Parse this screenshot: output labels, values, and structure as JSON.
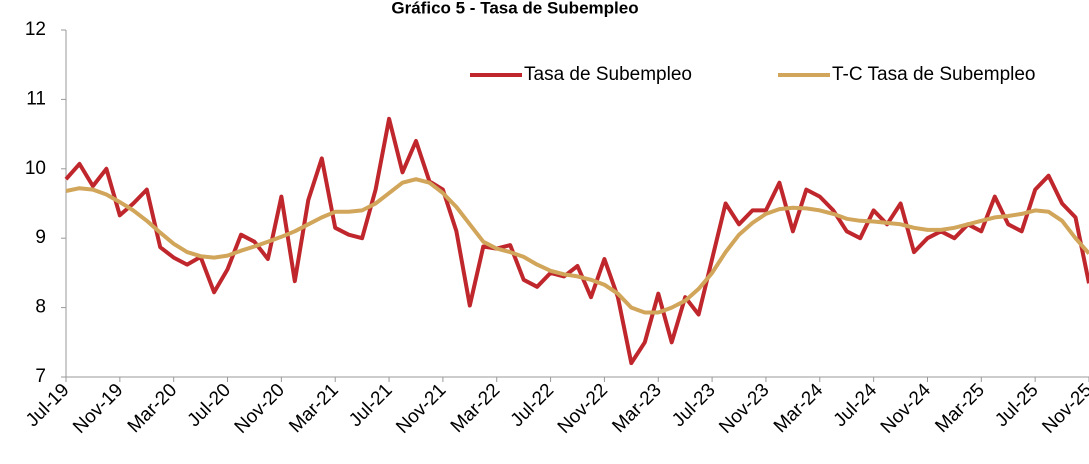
{
  "chart_data": {
    "type": "line",
    "title": "Gráfico 5 - Tasa de Subempleo",
    "categories": [
      "Jul-19",
      null,
      null,
      null,
      "Nov-19",
      null,
      null,
      null,
      "Mar-20",
      null,
      null,
      null,
      "Jul-20",
      null,
      null,
      null,
      "Nov-20",
      null,
      null,
      null,
      "Mar-21",
      null,
      null,
      null,
      "Jul-21",
      null,
      null,
      null,
      "Nov-21",
      null,
      null,
      null,
      "Mar-22",
      null,
      null,
      null,
      "Jul-22",
      null,
      null,
      null,
      "Nov-22",
      null,
      null,
      null,
      "Mar-23",
      null,
      null,
      null,
      "Jul-23",
      null,
      null,
      null,
      "Nov-23",
      null,
      null,
      null,
      "Mar-24",
      null,
      null,
      null,
      "Jul-24",
      null,
      null,
      null,
      "Nov-24",
      null,
      null,
      null,
      "Mar-25",
      null,
      null,
      null,
      "Jul-25",
      null,
      null,
      null,
      "Nov-25"
    ],
    "series": [
      {
        "name": "Tasa de Subempleo",
        "color": "#c0272d",
        "values": [
          9.85,
          10.07,
          9.75,
          10.0,
          9.33,
          9.5,
          9.7,
          8.87,
          8.72,
          8.62,
          8.73,
          8.22,
          8.55,
          9.05,
          8.95,
          8.7,
          9.6,
          8.38,
          9.55,
          10.15,
          9.15,
          9.05,
          9.0,
          9.7,
          10.72,
          9.95,
          10.4,
          9.82,
          9.7,
          9.1,
          8.03,
          8.88,
          8.85,
          8.9,
          8.4,
          8.3,
          8.5,
          8.45,
          8.6,
          8.15,
          8.7,
          8.15,
          7.2,
          7.5,
          8.2,
          7.5,
          8.15,
          7.9,
          8.7,
          9.5,
          9.2,
          9.4,
          9.4,
          9.8,
          9.1,
          9.7,
          9.6,
          9.4,
          9.1,
          9.0,
          9.4,
          9.2,
          9.5,
          8.8,
          9.0,
          9.1,
          9.0,
          9.2,
          9.1,
          9.6,
          9.2,
          9.1,
          9.7,
          9.9,
          9.5,
          9.3,
          8.35
        ]
      },
      {
        "name": "T-C Tasa de Subempleo",
        "color": "#d1a55a",
        "values": [
          9.68,
          9.72,
          9.7,
          9.63,
          9.52,
          9.4,
          9.25,
          9.08,
          8.92,
          8.8,
          8.74,
          8.72,
          8.75,
          8.82,
          8.88,
          8.95,
          9.02,
          9.1,
          9.2,
          9.3,
          9.38,
          9.38,
          9.4,
          9.5,
          9.65,
          9.8,
          9.85,
          9.8,
          9.65,
          9.45,
          9.2,
          8.95,
          8.85,
          8.8,
          8.73,
          8.62,
          8.53,
          8.48,
          8.45,
          8.4,
          8.33,
          8.2,
          8.0,
          7.93,
          7.93,
          8.0,
          8.1,
          8.27,
          8.5,
          8.8,
          9.05,
          9.22,
          9.35,
          9.42,
          9.44,
          9.43,
          9.4,
          9.35,
          9.28,
          9.25,
          9.24,
          9.22,
          9.2,
          9.15,
          9.12,
          9.12,
          9.15,
          9.2,
          9.25,
          9.3,
          9.32,
          9.35,
          9.4,
          9.38,
          9.25,
          9.0,
          8.78
        ]
      }
    ],
    "ylim": [
      7,
      12
    ],
    "yticks": [
      7,
      8,
      9,
      10,
      11,
      12
    ],
    "grid": false,
    "legend": "top-right"
  }
}
